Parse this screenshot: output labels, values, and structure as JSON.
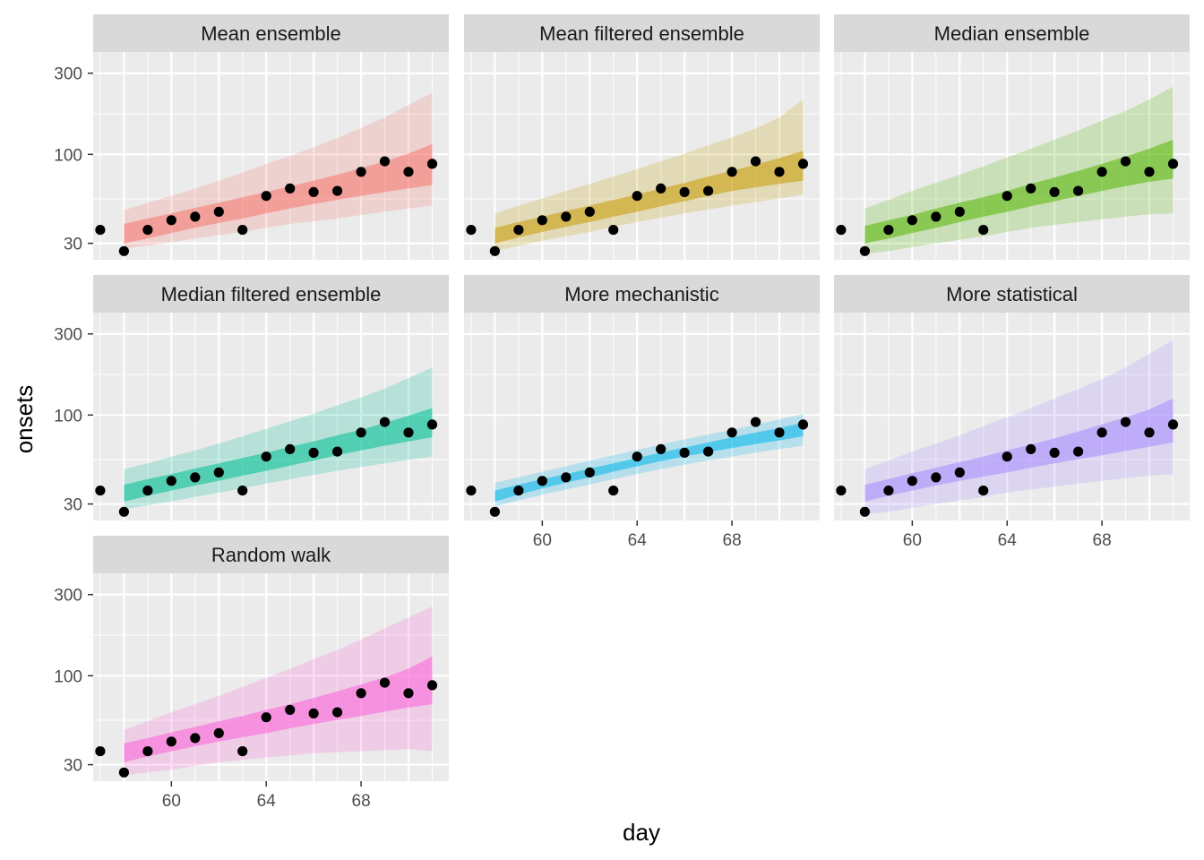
{
  "chart_data": {
    "type": "faceted_ribbon_scatter",
    "xlabel": "day",
    "ylabel": "onsets",
    "y_scale": "log10",
    "ylim": [
      24,
      400
    ],
    "xlim": [
      56.7,
      71.7
    ],
    "x_ticks": [
      60,
      64,
      68
    ],
    "y_ticks": [
      30,
      100,
      300
    ],
    "grid": true,
    "layout": {
      "columns": 3,
      "rows": 3
    },
    "observed": {
      "x": [
        57,
        58,
        59,
        60,
        61,
        62,
        63,
        64,
        65,
        66,
        67,
        68,
        69,
        70,
        71
      ],
      "y": [
        36,
        27,
        36,
        41,
        43,
        46,
        36,
        57,
        63,
        60,
        61,
        79,
        91,
        79,
        88
      ]
    },
    "forecast_days": [
      58,
      59,
      60,
      61,
      62,
      63,
      64,
      65,
      66,
      67,
      68,
      69,
      70,
      71
    ],
    "panels": [
      {
        "name": "Mean ensemble",
        "color": "#F8766D",
        "outer_lo": [
          28,
          29,
          30.5,
          32,
          33.5,
          35,
          37,
          39,
          40.5,
          42,
          44,
          46,
          48,
          50
        ],
        "inner_lo": [
          30,
          32,
          34.5,
          37,
          39.5,
          42,
          45,
          48,
          51,
          54,
          57,
          60,
          63,
          66
        ],
        "inner_hi": [
          39,
          42,
          45,
          48.5,
          52,
          56,
          60,
          65,
          70,
          76,
          83,
          91,
          101,
          115
        ],
        "outer_hi": [
          47,
          52,
          57,
          63,
          70,
          78,
          88,
          98,
          110,
          125,
          143,
          165,
          195,
          230
        ]
      },
      {
        "name": "Mean filtered ensemble",
        "color": "#C49A00",
        "outer_lo": [
          27,
          29,
          31,
          33,
          35,
          37.5,
          40,
          42.5,
          45,
          47.5,
          50,
          52.5,
          55,
          58
        ],
        "inner_lo": [
          30,
          32.5,
          35,
          37.5,
          40,
          43,
          46,
          49.5,
          53,
          57,
          61,
          64,
          67,
          70
        ],
        "inner_hi": [
          37,
          40,
          43,
          46.5,
          50,
          54,
          58,
          63,
          68,
          74,
          80,
          87,
          95,
          105
        ],
        "outer_hi": [
          45,
          50,
          55,
          61,
          67,
          74,
          82,
          91,
          101,
          113,
          126,
          142,
          165,
          210
        ]
      },
      {
        "name": "Median ensemble",
        "color": "#53B400",
        "outer_lo": [
          26,
          27,
          28.5,
          30,
          31.5,
          33,
          35,
          37,
          38.5,
          40,
          41.5,
          43,
          44.5,
          45
        ],
        "inner_lo": [
          30,
          32,
          34.5,
          37,
          40,
          43,
          46,
          49.5,
          53,
          57,
          61,
          65,
          69,
          72
        ],
        "inner_hi": [
          38,
          41,
          44,
          48,
          52,
          56,
          61,
          67,
          73,
          80,
          88,
          97,
          108,
          122
        ],
        "outer_hi": [
          48,
          54,
          61,
          68,
          76,
          85,
          96,
          108,
          122,
          138,
          158,
          180,
          210,
          250
        ]
      },
      {
        "name": "Median filtered ensemble",
        "color": "#00C094",
        "outer_lo": [
          28,
          29.5,
          31,
          33,
          35,
          37,
          39.5,
          42,
          44.5,
          47,
          49.5,
          52,
          54.5,
          57
        ],
        "inner_lo": [
          31,
          33.5,
          36,
          38.5,
          41,
          44,
          47,
          50.5,
          54,
          58,
          62,
          66,
          70,
          74
        ],
        "inner_hi": [
          39,
          42,
          45,
          48.5,
          52,
          56,
          60,
          65,
          70,
          76,
          82,
          90,
          99,
          110
        ],
        "outer_hi": [
          48,
          52,
          57,
          62,
          68,
          75,
          83,
          92,
          102,
          114,
          127,
          143,
          165,
          190
        ]
      },
      {
        "name": "More mechanistic",
        "color": "#00B6EB",
        "outer_lo": [
          29,
          31.5,
          34,
          36.5,
          39,
          42,
          45,
          48,
          51,
          54,
          57,
          60,
          63,
          66
        ],
        "inner_lo": [
          31,
          34,
          37,
          40,
          43,
          46.5,
          50,
          53.5,
          57,
          60.5,
          64,
          67.5,
          71,
          75
        ],
        "inner_hi": [
          36,
          39,
          42,
          45,
          48.5,
          52,
          56,
          60,
          64.5,
          69,
          74,
          79,
          84,
          90
        ],
        "outer_hi": [
          40,
          43,
          46.5,
          50,
          54,
          58,
          62.5,
          67,
          72,
          77,
          82,
          88,
          94,
          102
        ]
      },
      {
        "name": "More statistical",
        "color": "#A58AFF",
        "outer_lo": [
          26,
          27,
          28.5,
          30,
          31.5,
          33,
          35,
          36.5,
          38,
          39.5,
          41,
          42.5,
          44,
          45
        ],
        "inner_lo": [
          31,
          33.5,
          36,
          38.5,
          41,
          43.5,
          46,
          49,
          52,
          55,
          58,
          61.5,
          65,
          69
        ],
        "inner_hi": [
          39,
          42,
          45.5,
          49,
          53,
          57,
          62,
          67,
          73,
          80,
          88,
          97,
          108,
          125
        ],
        "outer_hi": [
          48,
          54,
          61,
          68,
          76,
          86,
          97,
          110,
          125,
          142,
          163,
          190,
          230,
          275
        ]
      },
      {
        "name": "Random walk",
        "color": "#FB61D7",
        "outer_lo": [
          26,
          27,
          28,
          29.5,
          31,
          32,
          33,
          34,
          35,
          35.5,
          36,
          36.5,
          37,
          36
        ],
        "inner_lo": [
          31,
          33.5,
          36,
          38.5,
          41,
          43.5,
          46,
          49,
          52,
          55,
          58,
          61.5,
          65,
          68
        ],
        "inner_hi": [
          40,
          43,
          46.5,
          50,
          54,
          58,
          63,
          68,
          74,
          81,
          89,
          98,
          110,
          130
        ],
        "outer_hi": [
          48,
          54,
          61,
          68,
          76,
          86,
          97,
          110,
          125,
          142,
          163,
          190,
          220,
          255
        ]
      }
    ]
  }
}
